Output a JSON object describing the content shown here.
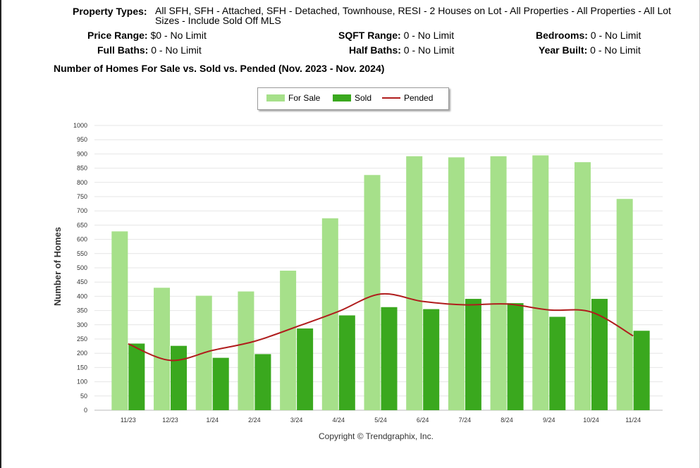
{
  "criteria": {
    "property_types": {
      "label": "Property Types:",
      "value": "All SFH, SFH - Attached, SFH - Detached, Townhouse, RESI - 2 Houses on Lot - All Properties - All Properties - All Lot Sizes - Include Sold Off MLS"
    },
    "price_range": {
      "label": "Price Range:",
      "value": "$0 - No Limit"
    },
    "sqft_range": {
      "label": "SQFT Range:",
      "value": "0 - No Limit"
    },
    "bedrooms": {
      "label": "Bedrooms:",
      "value": "0 - No Limit"
    },
    "full_baths": {
      "label": "Full Baths:",
      "value": "0 - No Limit"
    },
    "half_baths": {
      "label": "Half Baths:",
      "value": "0 - No Limit"
    },
    "year_built": {
      "label": "Year Built:",
      "value": "0 - No Limit"
    }
  },
  "chart_data": {
    "type": "bar",
    "title": "Number of Homes For Sale vs. Sold vs. Pended (Nov. 2023 - Nov. 2024)",
    "ylabel": "Number of Homes",
    "xlabel": "",
    "ylim": [
      0,
      1000
    ],
    "yticks": [
      0,
      50,
      100,
      150,
      200,
      250,
      300,
      350,
      400,
      450,
      500,
      550,
      600,
      650,
      700,
      750,
      800,
      850,
      900,
      950,
      1000
    ],
    "grid": true,
    "legend_position": "top-center",
    "categories": [
      "11/23",
      "12/23",
      "1/24",
      "2/24",
      "3/24",
      "4/24",
      "5/24",
      "6/24",
      "7/24",
      "8/24",
      "9/24",
      "10/24",
      "11/24"
    ],
    "series": [
      {
        "name": "For Sale",
        "kind": "bar",
        "color": "#a6e08a",
        "values": [
          628,
          430,
          402,
          417,
          490,
          674,
          826,
          892,
          888,
          892,
          895,
          871,
          742
        ]
      },
      {
        "name": "Sold",
        "kind": "bar",
        "color": "#3aa81e",
        "values": [
          234,
          226,
          184,
          197,
          287,
          333,
          362,
          355,
          391,
          376,
          328,
          391,
          279
        ]
      },
      {
        "name": "Pended",
        "kind": "line",
        "color": "#b01d1d",
        "values": [
          233,
          175,
          210,
          242,
          293,
          347,
          408,
          382,
          370,
          373,
          352,
          345,
          261
        ]
      }
    ]
  },
  "footer": {
    "copyright": "Copyright © Trendgraphix, Inc."
  }
}
